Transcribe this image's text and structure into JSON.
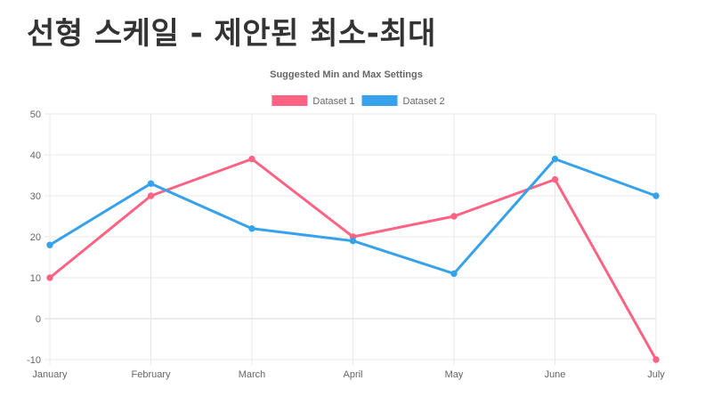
{
  "page": {
    "heading": "선형 스케일 - 제안된 최소-최대"
  },
  "chart_data": {
    "type": "line",
    "title": "Suggested Min and Max Settings",
    "xlabel": "",
    "ylabel": "",
    "categories": [
      "January",
      "February",
      "March",
      "April",
      "May",
      "June",
      "July"
    ],
    "ylim": [
      -10,
      50
    ],
    "yticks": [
      -10,
      0,
      10,
      20,
      30,
      40,
      50
    ],
    "grid": true,
    "legend": "top",
    "series": [
      {
        "name": "Dataset 1",
        "values": [
          10,
          30,
          39,
          20,
          25,
          34,
          -10
        ],
        "color": "#ff6384"
      },
      {
        "name": "Dataset 2",
        "values": [
          18,
          33,
          22,
          19,
          11,
          39,
          30
        ],
        "color": "#36a2eb"
      }
    ]
  }
}
